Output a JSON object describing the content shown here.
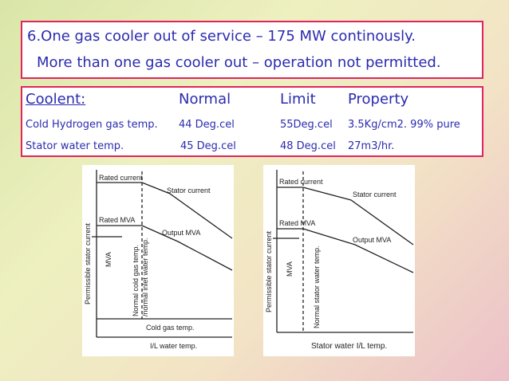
{
  "box1": {
    "line1": "6.One gas cooler out of service – 175 MW continously.",
    "line2": "More than one gas cooler out – operation not permitted."
  },
  "table": {
    "header": [
      "Coolent:",
      "Normal",
      "Limit",
      "Property"
    ],
    "rows": [
      [
        "Cold Hydrogen gas temp.",
        "44 Deg.cel",
        "55Deg.cel",
        "3.5Kg/cm2. 99% pure"
      ],
      [
        "Stator water temp.",
        "45 Deg.cel",
        "48 Deg.cel",
        "27m3/hr."
      ]
    ]
  },
  "diagrams": [
    {
      "rated_current": "Rated current",
      "stator_current": "Stator current",
      "rated_mva": "Rated MVA",
      "output_mva": "Output MVA",
      "y_axis": "Permissible stator current",
      "mva": "MVA",
      "normal_temp": "Normal cold gas temp.",
      "normal_temp2": "/normal inlet water temp.",
      "x_axis": "Cold gas temp.",
      "x_axis2": "I/L water temp."
    },
    {
      "rated_current": "Rated current",
      "stator_current": "Stator current",
      "rated_mva": "Rated MVA",
      "output_mva": "Output MVA",
      "y_axis": "Permissible stator current",
      "mva": "MVA",
      "normal_temp": "Normal stator water temp.",
      "x_axis": "Stator water I/L temp."
    }
  ]
}
